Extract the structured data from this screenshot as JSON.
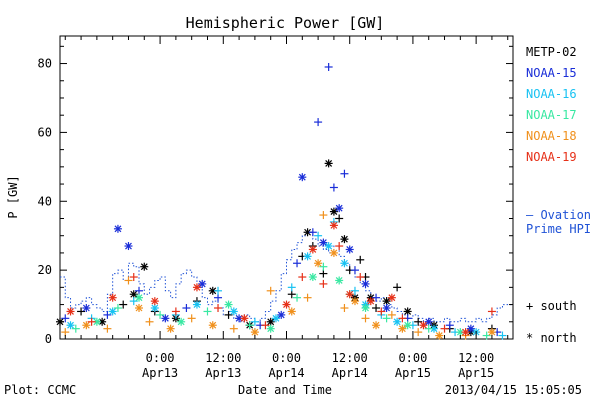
{
  "chart_data": {
    "type": "scatter",
    "title": "Hemispheric Power [GW]",
    "ylabel": "P [GW]",
    "xlabel": "Date and Time",
    "ylim": [
      0,
      88
    ],
    "y_ticks": [
      "0",
      "20",
      "40",
      "60",
      "80"
    ],
    "x_ticks": [
      {
        "time": "0:00",
        "date": "Apr13",
        "h": 19
      },
      {
        "time": "12:00",
        "date": "Apr13",
        "h": 31
      },
      {
        "time": "0:00",
        "date": "Apr14",
        "h": 43
      },
      {
        "time": "12:00",
        "date": "Apr14",
        "h": 55
      },
      {
        "time": "0:00",
        "date": "Apr15",
        "h": 67
      },
      {
        "time": "12:00",
        "date": "Apr15",
        "h": 79
      }
    ],
    "xlim_hours": [
      0,
      86
    ],
    "grid": false,
    "legend_position": "right",
    "footer_left": "Plot: CCMC",
    "footer_right": "2013/04/15 15:05:05",
    "ovation_label_1": "— Ovation",
    "ovation_label_2": "Prime HPI",
    "symbol_south": "+ south",
    "symbol_north": "* north",
    "series": [
      {
        "name": "METP-02",
        "color": "#000000",
        "points": [
          [
            0,
            5,
            "n"
          ],
          [
            4,
            8,
            "s"
          ],
          [
            8,
            5,
            "n"
          ],
          [
            12,
            10,
            "s"
          ],
          [
            14,
            13,
            "n"
          ],
          [
            16,
            21,
            "n"
          ],
          [
            18,
            8,
            "s"
          ],
          [
            22,
            6,
            "n"
          ],
          [
            26,
            11,
            "s"
          ],
          [
            29,
            14,
            "n"
          ],
          [
            32,
            7,
            "s"
          ],
          [
            36,
            4,
            "n"
          ],
          [
            40,
            5,
            "n"
          ],
          [
            44,
            13,
            "s"
          ],
          [
            46,
            24,
            "s"
          ],
          [
            47,
            31,
            "n"
          ],
          [
            48,
            27,
            "s"
          ],
          [
            50,
            19,
            "s"
          ],
          [
            51,
            51,
            "n"
          ],
          [
            52,
            37,
            "n"
          ],
          [
            53,
            35,
            "s"
          ],
          [
            54,
            29,
            "n"
          ],
          [
            55,
            20,
            "s"
          ],
          [
            56,
            12,
            "n"
          ],
          [
            57,
            23,
            "s"
          ],
          [
            58,
            18,
            "s"
          ],
          [
            59,
            12,
            "n"
          ],
          [
            60,
            9,
            "s"
          ],
          [
            62,
            11,
            "n"
          ],
          [
            64,
            15,
            "s"
          ],
          [
            66,
            8,
            "n"
          ],
          [
            68,
            5,
            "s"
          ],
          [
            71,
            4,
            "n"
          ],
          [
            74,
            3,
            "s"
          ],
          [
            78,
            2,
            "n"
          ],
          [
            82,
            3,
            "s"
          ]
        ]
      },
      {
        "name": "NOAA-15",
        "color": "#1a2ed8",
        "points": [
          [
            1,
            6,
            "s"
          ],
          [
            5,
            9,
            "n"
          ],
          [
            9,
            7,
            "s"
          ],
          [
            11,
            32,
            "n"
          ],
          [
            13,
            27,
            "n"
          ],
          [
            15,
            14,
            "s"
          ],
          [
            20,
            6,
            "n"
          ],
          [
            24,
            9,
            "s"
          ],
          [
            27,
            16,
            "n"
          ],
          [
            30,
            12,
            "s"
          ],
          [
            34,
            6,
            "n"
          ],
          [
            38,
            4,
            "s"
          ],
          [
            42,
            7,
            "n"
          ],
          [
            45,
            22,
            "s"
          ],
          [
            46,
            47,
            "n"
          ],
          [
            48,
            31,
            "s"
          ],
          [
            49,
            63,
            "s"
          ],
          [
            50,
            28,
            "n"
          ],
          [
            51,
            79,
            "s"
          ],
          [
            52,
            44,
            "s"
          ],
          [
            53,
            38,
            "n"
          ],
          [
            54,
            48,
            "s"
          ],
          [
            55,
            26,
            "n"
          ],
          [
            56,
            20,
            "s"
          ],
          [
            58,
            16,
            "n"
          ],
          [
            60,
            12,
            "s"
          ],
          [
            62,
            9,
            "n"
          ],
          [
            66,
            6,
            "s"
          ],
          [
            70,
            5,
            "n"
          ],
          [
            74,
            4,
            "s"
          ],
          [
            78,
            3,
            "n"
          ],
          [
            83,
            2,
            "s"
          ]
        ]
      },
      {
        "name": "NOAA-16",
        "color": "#18c2f2",
        "points": [
          [
            2,
            4,
            "n"
          ],
          [
            6,
            6,
            "s"
          ],
          [
            10,
            8,
            "n"
          ],
          [
            14,
            11,
            "s"
          ],
          [
            18,
            9,
            "n"
          ],
          [
            22,
            7,
            "s"
          ],
          [
            26,
            10,
            "n"
          ],
          [
            30,
            14,
            "s"
          ],
          [
            33,
            8,
            "n"
          ],
          [
            37,
            5,
            "s"
          ],
          [
            41,
            6,
            "n"
          ],
          [
            44,
            15,
            "s"
          ],
          [
            47,
            24,
            "n"
          ],
          [
            49,
            30,
            "s"
          ],
          [
            51,
            27,
            "n"
          ],
          [
            52,
            34,
            "s"
          ],
          [
            54,
            22,
            "n"
          ],
          [
            56,
            14,
            "s"
          ],
          [
            58,
            10,
            "n"
          ],
          [
            61,
            7,
            "s"
          ],
          [
            64,
            5,
            "n"
          ],
          [
            67,
            4,
            "s"
          ],
          [
            71,
            3,
            "n"
          ],
          [
            75,
            2,
            "s"
          ],
          [
            79,
            2,
            "n"
          ],
          [
            84,
            1,
            "s"
          ]
        ]
      },
      {
        "name": "NOAA-17",
        "color": "#38e8a2",
        "points": [
          [
            3,
            3,
            "s"
          ],
          [
            7,
            5,
            "n"
          ],
          [
            11,
            9,
            "s"
          ],
          [
            15,
            12,
            "n"
          ],
          [
            19,
            7,
            "s"
          ],
          [
            23,
            5,
            "n"
          ],
          [
            28,
            8,
            "s"
          ],
          [
            32,
            10,
            "n"
          ],
          [
            36,
            4,
            "s"
          ],
          [
            40,
            3,
            "n"
          ],
          [
            45,
            12,
            "s"
          ],
          [
            48,
            18,
            "n"
          ],
          [
            50,
            21,
            "s"
          ],
          [
            53,
            17,
            "n"
          ],
          [
            55,
            13,
            "s"
          ],
          [
            58,
            9,
            "n"
          ],
          [
            62,
            6,
            "s"
          ],
          [
            66,
            4,
            "n"
          ],
          [
            70,
            3,
            "s"
          ],
          [
            76,
            2,
            "n"
          ],
          [
            81,
            1,
            "s"
          ]
        ]
      },
      {
        "name": "NOAA-18",
        "color": "#f0901c",
        "points": [
          [
            1,
            2,
            "s"
          ],
          [
            5,
            4,
            "n"
          ],
          [
            9,
            3,
            "s"
          ],
          [
            13,
            17,
            "s"
          ],
          [
            15,
            9,
            "n"
          ],
          [
            17,
            5,
            "s"
          ],
          [
            21,
            3,
            "n"
          ],
          [
            25,
            6,
            "s"
          ],
          [
            29,
            4,
            "n"
          ],
          [
            33,
            3,
            "s"
          ],
          [
            37,
            2,
            "n"
          ],
          [
            40,
            14,
            "s"
          ],
          [
            44,
            8,
            "n"
          ],
          [
            47,
            12,
            "s"
          ],
          [
            49,
            22,
            "n"
          ],
          [
            50,
            36,
            "s"
          ],
          [
            52,
            25,
            "n"
          ],
          [
            54,
            9,
            "s"
          ],
          [
            56,
            11,
            "n"
          ],
          [
            58,
            6,
            "s"
          ],
          [
            60,
            4,
            "n"
          ],
          [
            63,
            7,
            "s"
          ],
          [
            65,
            3,
            "n"
          ],
          [
            68,
            2,
            "s"
          ],
          [
            72,
            1,
            "n"
          ],
          [
            77,
            1,
            "s"
          ],
          [
            82,
            2,
            "n"
          ]
        ]
      },
      {
        "name": "NOAA-19",
        "color": "#e63018",
        "points": [
          [
            2,
            8,
            "n"
          ],
          [
            6,
            5,
            "s"
          ],
          [
            10,
            12,
            "n"
          ],
          [
            14,
            18,
            "s"
          ],
          [
            18,
            11,
            "n"
          ],
          [
            22,
            8,
            "s"
          ],
          [
            26,
            15,
            "n"
          ],
          [
            30,
            9,
            "s"
          ],
          [
            35,
            6,
            "n"
          ],
          [
            39,
            4,
            "s"
          ],
          [
            43,
            10,
            "n"
          ],
          [
            46,
            18,
            "s"
          ],
          [
            48,
            26,
            "n"
          ],
          [
            50,
            16,
            "s"
          ],
          [
            52,
            33,
            "n"
          ],
          [
            53,
            27,
            "s"
          ],
          [
            55,
            13,
            "n"
          ],
          [
            57,
            18,
            "s"
          ],
          [
            59,
            11,
            "n"
          ],
          [
            61,
            8,
            "s"
          ],
          [
            63,
            12,
            "n"
          ],
          [
            65,
            6,
            "s"
          ],
          [
            69,
            4,
            "n"
          ],
          [
            73,
            3,
            "s"
          ],
          [
            77,
            2,
            "n"
          ],
          [
            82,
            8,
            "s"
          ]
        ]
      }
    ],
    "ovation": {
      "name": "Ovation Prime HPI",
      "color": "#1f52d6",
      "points": [
        [
          0,
          18
        ],
        [
          1,
          12
        ],
        [
          2,
          9
        ],
        [
          3,
          10
        ],
        [
          4,
          11
        ],
        [
          5,
          12
        ],
        [
          6,
          10
        ],
        [
          7,
          9
        ],
        [
          8,
          8
        ],
        [
          9,
          13
        ],
        [
          10,
          19
        ],
        [
          11,
          20
        ],
        [
          12,
          17
        ],
        [
          13,
          22
        ],
        [
          14,
          21
        ],
        [
          15,
          16
        ],
        [
          16,
          13
        ],
        [
          17,
          15
        ],
        [
          18,
          17
        ],
        [
          19,
          18
        ],
        [
          20,
          14
        ],
        [
          21,
          12
        ],
        [
          22,
          16
        ],
        [
          23,
          19
        ],
        [
          24,
          20
        ],
        [
          25,
          18
        ],
        [
          26,
          15
        ],
        [
          27,
          12
        ],
        [
          28,
          10
        ],
        [
          29,
          11
        ],
        [
          30,
          9
        ],
        [
          31,
          7
        ],
        [
          32,
          8
        ],
        [
          33,
          6
        ],
        [
          34,
          5
        ],
        [
          35,
          7
        ],
        [
          36,
          6
        ],
        [
          37,
          5
        ],
        [
          38,
          6
        ],
        [
          39,
          8
        ],
        [
          40,
          11
        ],
        [
          41,
          14
        ],
        [
          42,
          19
        ],
        [
          43,
          23
        ],
        [
          44,
          26
        ],
        [
          45,
          28
        ],
        [
          46,
          30
        ],
        [
          47,
          31
        ],
        [
          48,
          29
        ],
        [
          49,
          27
        ],
        [
          50,
          26
        ],
        [
          51,
          25
        ],
        [
          52,
          27
        ],
        [
          53,
          24
        ],
        [
          54,
          22
        ],
        [
          55,
          20
        ],
        [
          56,
          18
        ],
        [
          57,
          16
        ],
        [
          58,
          14
        ],
        [
          59,
          12
        ],
        [
          60,
          11
        ],
        [
          61,
          12
        ],
        [
          62,
          10
        ],
        [
          63,
          9
        ],
        [
          64,
          8
        ],
        [
          65,
          7
        ],
        [
          66,
          6
        ],
        [
          67,
          7
        ],
        [
          68,
          6
        ],
        [
          69,
          5
        ],
        [
          70,
          6
        ],
        [
          71,
          5
        ],
        [
          72,
          5
        ],
        [
          73,
          6
        ],
        [
          74,
          5
        ],
        [
          75,
          5
        ],
        [
          76,
          6
        ],
        [
          77,
          5
        ],
        [
          78,
          5
        ],
        [
          79,
          6
        ],
        [
          80,
          5
        ],
        [
          81,
          6
        ],
        [
          82,
          7
        ],
        [
          83,
          9
        ],
        [
          84,
          10
        ],
        [
          85,
          10
        ]
      ]
    }
  }
}
